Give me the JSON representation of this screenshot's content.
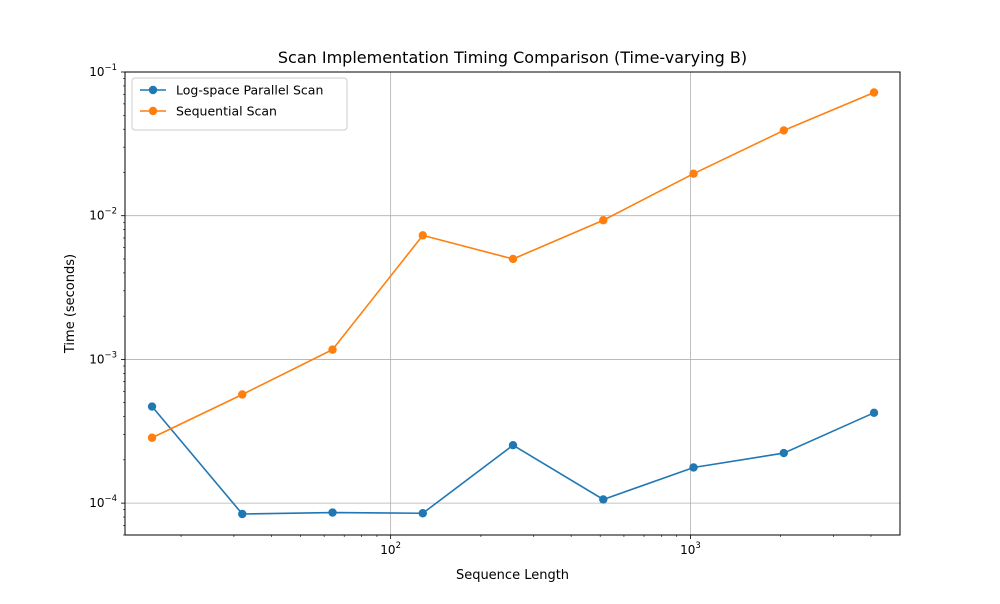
{
  "chart_data": {
    "type": "line",
    "title": "Scan Implementation Timing Comparison (Time-varying B)",
    "xlabel": "Sequence Length",
    "ylabel": "Time (seconds)",
    "xscale": "log",
    "yscale": "log",
    "xlim": [
      13.0,
      5000
    ],
    "ylim": [
      6e-05,
      0.1
    ],
    "x_ticks": [
      {
        "value": 100,
        "base": "10",
        "exp": "2"
      },
      {
        "value": 1000,
        "base": "10",
        "exp": "3"
      }
    ],
    "y_ticks": [
      {
        "value": 0.0001,
        "base": "10",
        "exp": "−4"
      },
      {
        "value": 0.001,
        "base": "10",
        "exp": "−3"
      },
      {
        "value": 0.01,
        "base": "10",
        "exp": "−2"
      },
      {
        "value": 0.1,
        "base": "10",
        "exp": "−1"
      }
    ],
    "grid": true,
    "legend_position": "top-left",
    "x": [
      16,
      32,
      64,
      128,
      256,
      512,
      1024,
      2048,
      4096
    ],
    "series": [
      {
        "name": "Log-space Parallel Scan",
        "color": "#1f77b4",
        "values": [
          0.00047,
          8.4e-05,
          8.6e-05,
          8.5e-05,
          0.000253,
          0.000106,
          0.000177,
          0.000223,
          0.000425
        ]
      },
      {
        "name": "Sequential Scan",
        "color": "#ff7f0e",
        "values": [
          0.000285,
          0.00057,
          0.00117,
          0.0073,
          0.005,
          0.0093,
          0.0196,
          0.0392,
          0.072
        ]
      }
    ]
  }
}
